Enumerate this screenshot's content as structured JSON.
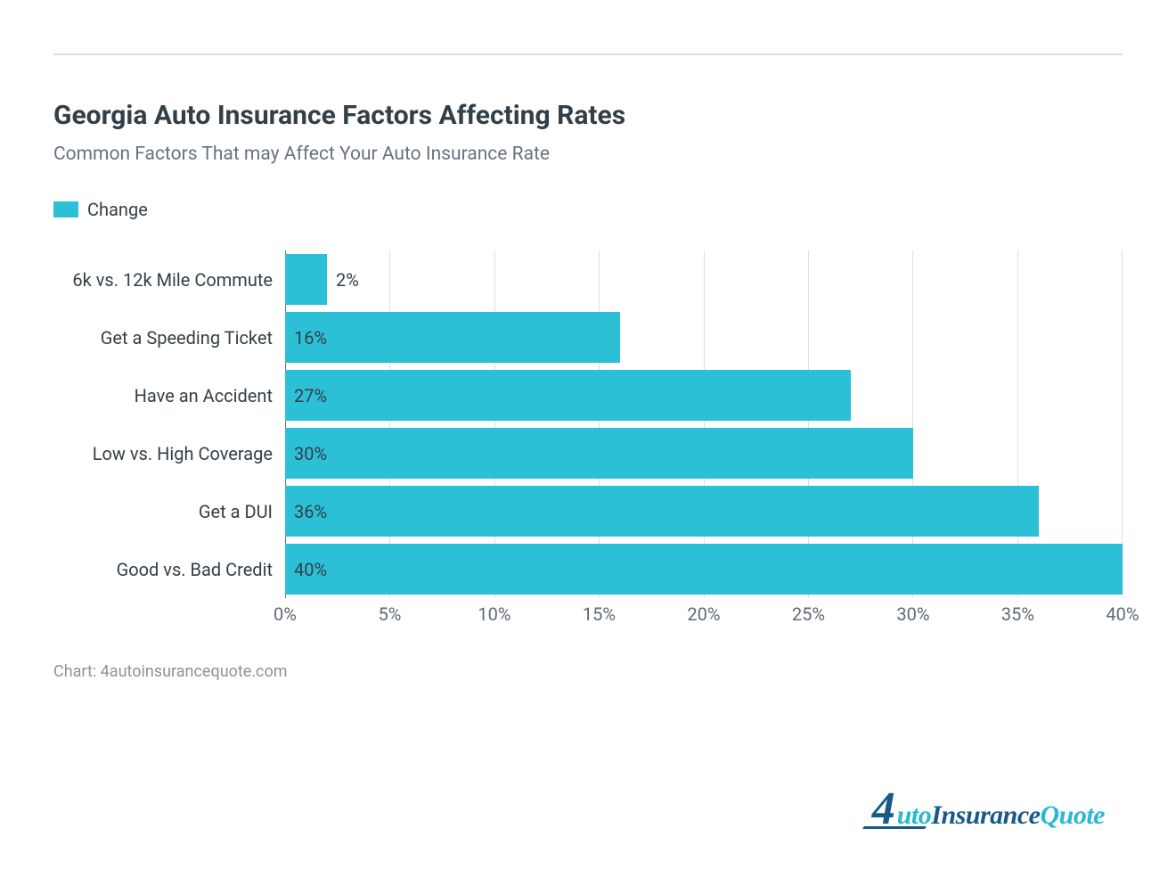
{
  "chart": {
    "type": "bar-horizontal",
    "title": "Georgia Auto Insurance Factors Affecting Rates",
    "subtitle": "Common Factors That may Affect Your Auto Insurance Rate",
    "legend_label": "Change",
    "series_color": "#2cc0d6",
    "background_color": "#ffffff",
    "grid_color": "#dcdfe2",
    "axis_color": "#6b7680",
    "title_color": "#333f48",
    "subtitle_color": "#677380",
    "label_color": "#333f48",
    "tick_color": "#606a74",
    "title_fontsize": 30,
    "subtitle_fontsize": 21,
    "label_fontsize": 20,
    "xmin": 0,
    "xmax": 40,
    "xtick_step": 5,
    "xticks": [
      "0%",
      "5%",
      "10%",
      "15%",
      "20%",
      "25%",
      "30%",
      "35%",
      "40%"
    ],
    "value_label_inside_threshold": 5,
    "bars": [
      {
        "label": "6k vs. 12k Mile Commute",
        "value": 2,
        "value_label": "2%",
        "label_pos": "outside"
      },
      {
        "label": "Get a Speeding Ticket",
        "value": 16,
        "value_label": "16%",
        "label_pos": "inside"
      },
      {
        "label": "Have an Accident",
        "value": 27,
        "value_label": "27%",
        "label_pos": "inside"
      },
      {
        "label": "Low vs. High Coverage",
        "value": 30,
        "value_label": "30%",
        "label_pos": "inside"
      },
      {
        "label": "Get a DUI",
        "value": 36,
        "value_label": "36%",
        "label_pos": "inside"
      },
      {
        "label": "Good vs. Bad Credit",
        "value": 40,
        "value_label": "40%",
        "label_pos": "inside"
      }
    ],
    "credit": "Chart: 4autoinsurancequote.com",
    "logo": {
      "four": "4",
      "part1": "uto",
      "part2": "Insurance",
      "part3": "Quote",
      "dark_color": "#175a87",
      "light_color": "#28b9d0"
    }
  }
}
